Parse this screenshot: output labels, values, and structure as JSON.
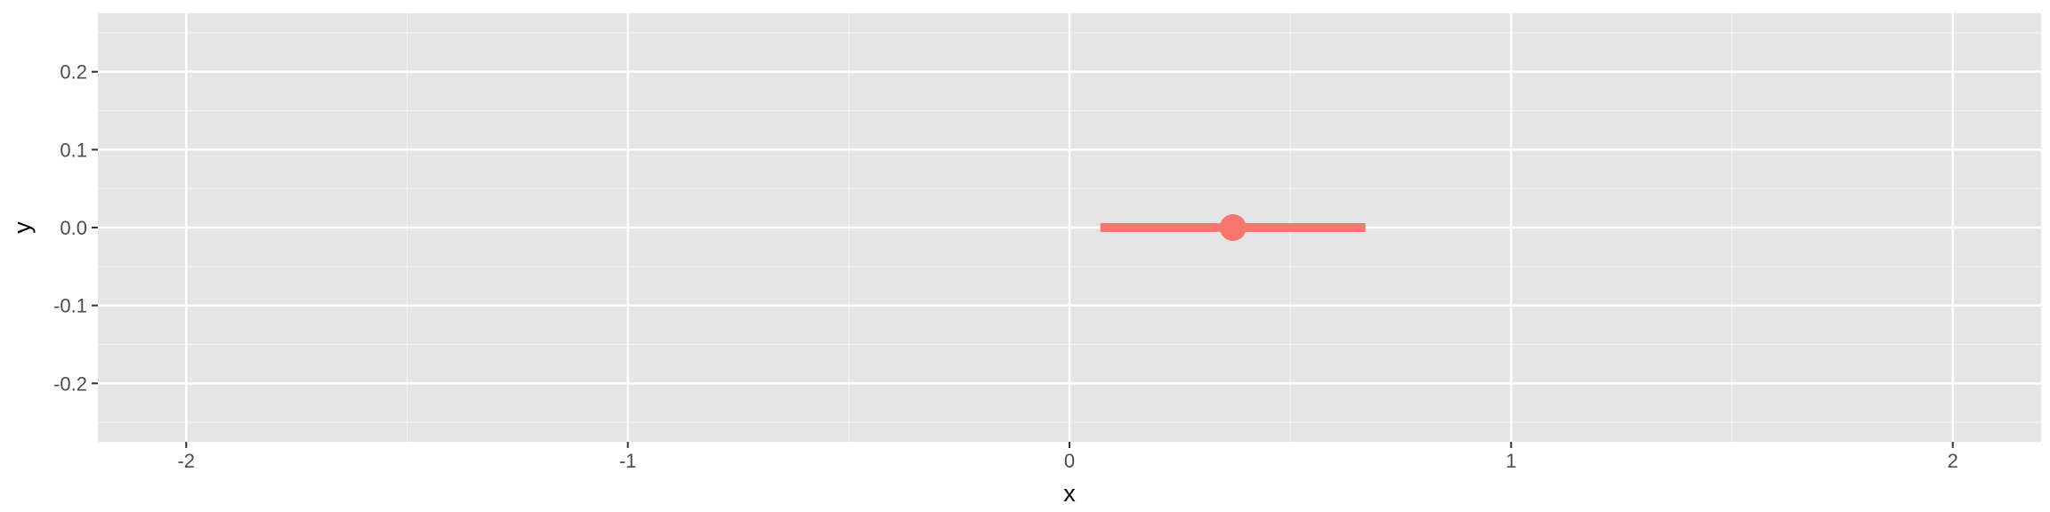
{
  "chart_data": {
    "type": "pointrange",
    "xlabel": "x",
    "ylabel": "y",
    "xlim": [
      -2.2,
      2.2
    ],
    "ylim": [
      -0.275,
      0.275
    ],
    "x_ticks": [
      -2,
      -1,
      0,
      1,
      2
    ],
    "x_tick_labels": [
      "-2",
      "-1",
      "0",
      "1",
      "2"
    ],
    "y_ticks": [
      -0.2,
      -0.1,
      0.0,
      0.1,
      0.2
    ],
    "y_tick_labels": [
      "-0.2",
      "-0.1",
      "0.0",
      "0.1",
      "0.2"
    ],
    "grid": true,
    "points": [
      {
        "x": 0.37,
        "xmin": 0.07,
        "xmax": 0.67,
        "y": 0.0
      }
    ],
    "colors": {
      "panel": "#e5e5e5",
      "grid_major": "#ffffff",
      "grid_minor": "#f2f2f2",
      "series": "#f8766d"
    }
  }
}
